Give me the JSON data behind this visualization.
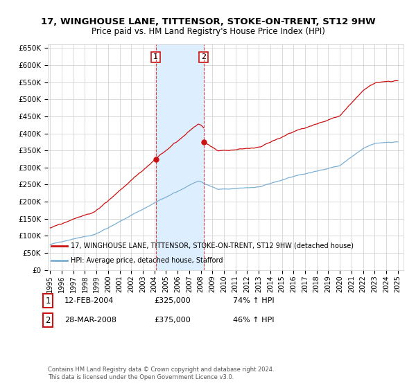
{
  "title": "17, WINGHOUSE LANE, TITTENSOR, STOKE-ON-TRENT, ST12 9HW",
  "subtitle": "Price paid vs. HM Land Registry's House Price Index (HPI)",
  "background_color": "#ffffff",
  "plot_bg_color": "#ffffff",
  "grid_color": "#cccccc",
  "shaded_region": [
    2004.12,
    2008.25
  ],
  "shaded_color": "#ddeeff",
  "sale1_date": 2004.12,
  "sale1_price": 325000,
  "sale1_label": "1",
  "sale2_date": 2008.25,
  "sale2_price": 375000,
  "sale2_label": "2",
  "ylim": [
    0,
    660000
  ],
  "xlim": [
    1994.8,
    2025.5
  ],
  "yticks": [
    0,
    50000,
    100000,
    150000,
    200000,
    250000,
    300000,
    350000,
    400000,
    450000,
    500000,
    550000,
    600000,
    650000
  ],
  "ytick_labels": [
    "£0",
    "£50K",
    "£100K",
    "£150K",
    "£200K",
    "£250K",
    "£300K",
    "£350K",
    "£400K",
    "£450K",
    "£500K",
    "£550K",
    "£600K",
    "£650K"
  ],
  "xticks": [
    1995,
    1996,
    1997,
    1998,
    1999,
    2000,
    2001,
    2002,
    2003,
    2004,
    2005,
    2006,
    2007,
    2008,
    2009,
    2010,
    2011,
    2012,
    2013,
    2014,
    2015,
    2016,
    2017,
    2018,
    2019,
    2020,
    2021,
    2022,
    2023,
    2024,
    2025
  ],
  "hpi_color": "#7bafd4",
  "price_color": "#cc1111",
  "legend_label_price": "17, WINGHOUSE LANE, TITTENSOR, STOKE-ON-TRENT, ST12 9HW (detached house)",
  "legend_label_hpi": "HPI: Average price, detached house, Stafford",
  "annotation1_date": "12-FEB-2004",
  "annotation1_price": "£325,000",
  "annotation1_hpi": "74% ↑ HPI",
  "annotation2_date": "28-MAR-2008",
  "annotation2_price": "£375,000",
  "annotation2_hpi": "46% ↑ HPI",
  "footer": "Contains HM Land Registry data © Crown copyright and database right 2024.\nThis data is licensed under the Open Government Licence v3.0."
}
